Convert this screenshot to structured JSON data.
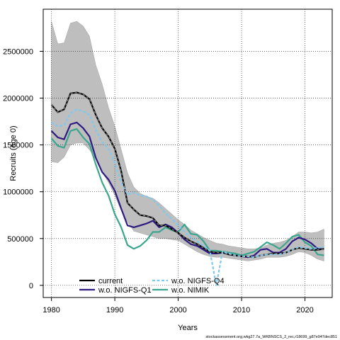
{
  "chart_data": {
    "type": "line",
    "xlabel": "Years",
    "ylabel": "Recruits (age 0)",
    "xlim": [
      1978.7,
      2024.3
    ],
    "ylim": [
      -130000,
      2950000
    ],
    "xticks": [
      1980,
      1990,
      2000,
      2010,
      2020
    ],
    "yticks": [
      0,
      500000,
      1000000,
      1500000,
      2000000,
      2500000
    ],
    "grid": true,
    "legend_position": "bottom-left",
    "source_note": "stockassessment.org,wkg27.7a_WKBNSCS_2_rec,r18699_g87e947dec851",
    "x": [
      1980,
      1981,
      1982,
      1983,
      1984,
      1985,
      1986,
      1987,
      1988,
      1989,
      1990,
      1991,
      1992,
      1993,
      1994,
      1995,
      1996,
      1997,
      1998,
      1999,
      2000,
      2001,
      2002,
      2003,
      2004,
      2005,
      2006,
      2007,
      2008,
      2009,
      2010,
      2011,
      2012,
      2013,
      2014,
      2015,
      2016,
      2017,
      2018,
      2019,
      2020,
      2021,
      2022,
      2023
    ],
    "confidence_band": {
      "color": "#bebebe",
      "lower": [
        1320000,
        1310000,
        1370000,
        1500000,
        1520000,
        1520000,
        1450000,
        1350000,
        1210000,
        1100000,
        960000,
        800000,
        680000,
        580000,
        560000,
        540000,
        520000,
        500000,
        500000,
        490000,
        480000,
        440000,
        400000,
        360000,
        330000,
        310000,
        300000,
        300000,
        290000,
        280000,
        270000,
        260000,
        270000,
        280000,
        300000,
        300000,
        300000,
        310000,
        330000,
        360000,
        350000,
        320000,
        280000,
        260000
      ],
      "upper": [
        2820000,
        2580000,
        2590000,
        2800000,
        2820000,
        2770000,
        2660000,
        2350000,
        2150000,
        1900000,
        1700000,
        1450000,
        1200000,
        1050000,
        980000,
        950000,
        930000,
        880000,
        820000,
        760000,
        700000,
        650000,
        590000,
        550000,
        510000,
        480000,
        450000,
        440000,
        420000,
        410000,
        400000,
        390000,
        390000,
        400000,
        430000,
        450000,
        460000,
        480000,
        520000,
        570000,
        570000,
        560000,
        570000,
        600000
      ]
    },
    "series": [
      {
        "name": "current",
        "color": "#000000",
        "dash": "solid",
        "values": [
          1930000,
          1850000,
          1880000,
          2050000,
          2060000,
          2040000,
          1990000,
          1820000,
          1680000,
          1590000,
          1460000,
          1220000,
          880000,
          810000,
          750000,
          740000,
          720000,
          640000,
          640000,
          600000,
          560000,
          510000,
          470000,
          440000,
          400000,
          360000,
          350000,
          350000,
          330000,
          320000,
          310000,
          310000,
          300000,
          320000,
          330000,
          340000,
          340000,
          350000,
          380000,
          400000,
          390000,
          380000,
          380000,
          390000
        ]
      },
      {
        "name": "w.o. NIGFS-Q1",
        "color": "#2e1a80",
        "dash": "solid",
        "values": [
          1650000,
          1580000,
          1560000,
          1720000,
          1740000,
          1680000,
          1590000,
          1360000,
          1210000,
          1130000,
          1010000,
          820000,
          640000,
          620000,
          640000,
          660000,
          690000,
          620000,
          650000,
          620000,
          560000,
          490000,
          440000,
          420000,
          380000,
          340000,
          340000,
          350000,
          330000,
          320000,
          310000,
          300000,
          320000,
          380000,
          390000,
          350000,
          350000,
          390000,
          470000,
          510000,
          490000,
          450000,
          390000,
          390000
        ]
      },
      {
        "name": "w.o. NIGFS-Q4",
        "color": "#7fc8ee",
        "dash": "dashed",
        "values": [
          1740000,
          1700000,
          1710000,
          1840000,
          1880000,
          1860000,
          1820000,
          1660000,
          1530000,
          1460000,
          1310000,
          1100000,
          970000,
          990000,
          960000,
          950000,
          920000,
          850000,
          770000,
          710000,
          640000,
          570000,
          510000,
          470000,
          420000,
          370000,
          360,
          360000,
          340000,
          320000,
          310000,
          310000,
          300000,
          320000,
          330000,
          330000,
          330000,
          350000,
          380000,
          410000,
          400000,
          390000,
          400000,
          410000
        ]
      },
      {
        "name": "w.o. NIMIK",
        "color": "#3aa68d",
        "dash": "solid",
        "values": [
          1570000,
          1490000,
          1470000,
          1650000,
          1670000,
          1580000,
          1510000,
          1290000,
          1100000,
          960000,
          760000,
          620000,
          430000,
          390000,
          420000,
          480000,
          570000,
          570000,
          620000,
          590000,
          570000,
          650000,
          550000,
          540000,
          470000,
          370000,
          370000,
          360000,
          350000,
          340000,
          320000,
          340000,
          360000,
          410000,
          460000,
          430000,
          390000,
          450000,
          520000,
          540000,
          460000,
          420000,
          330000,
          320000
        ]
      }
    ]
  }
}
